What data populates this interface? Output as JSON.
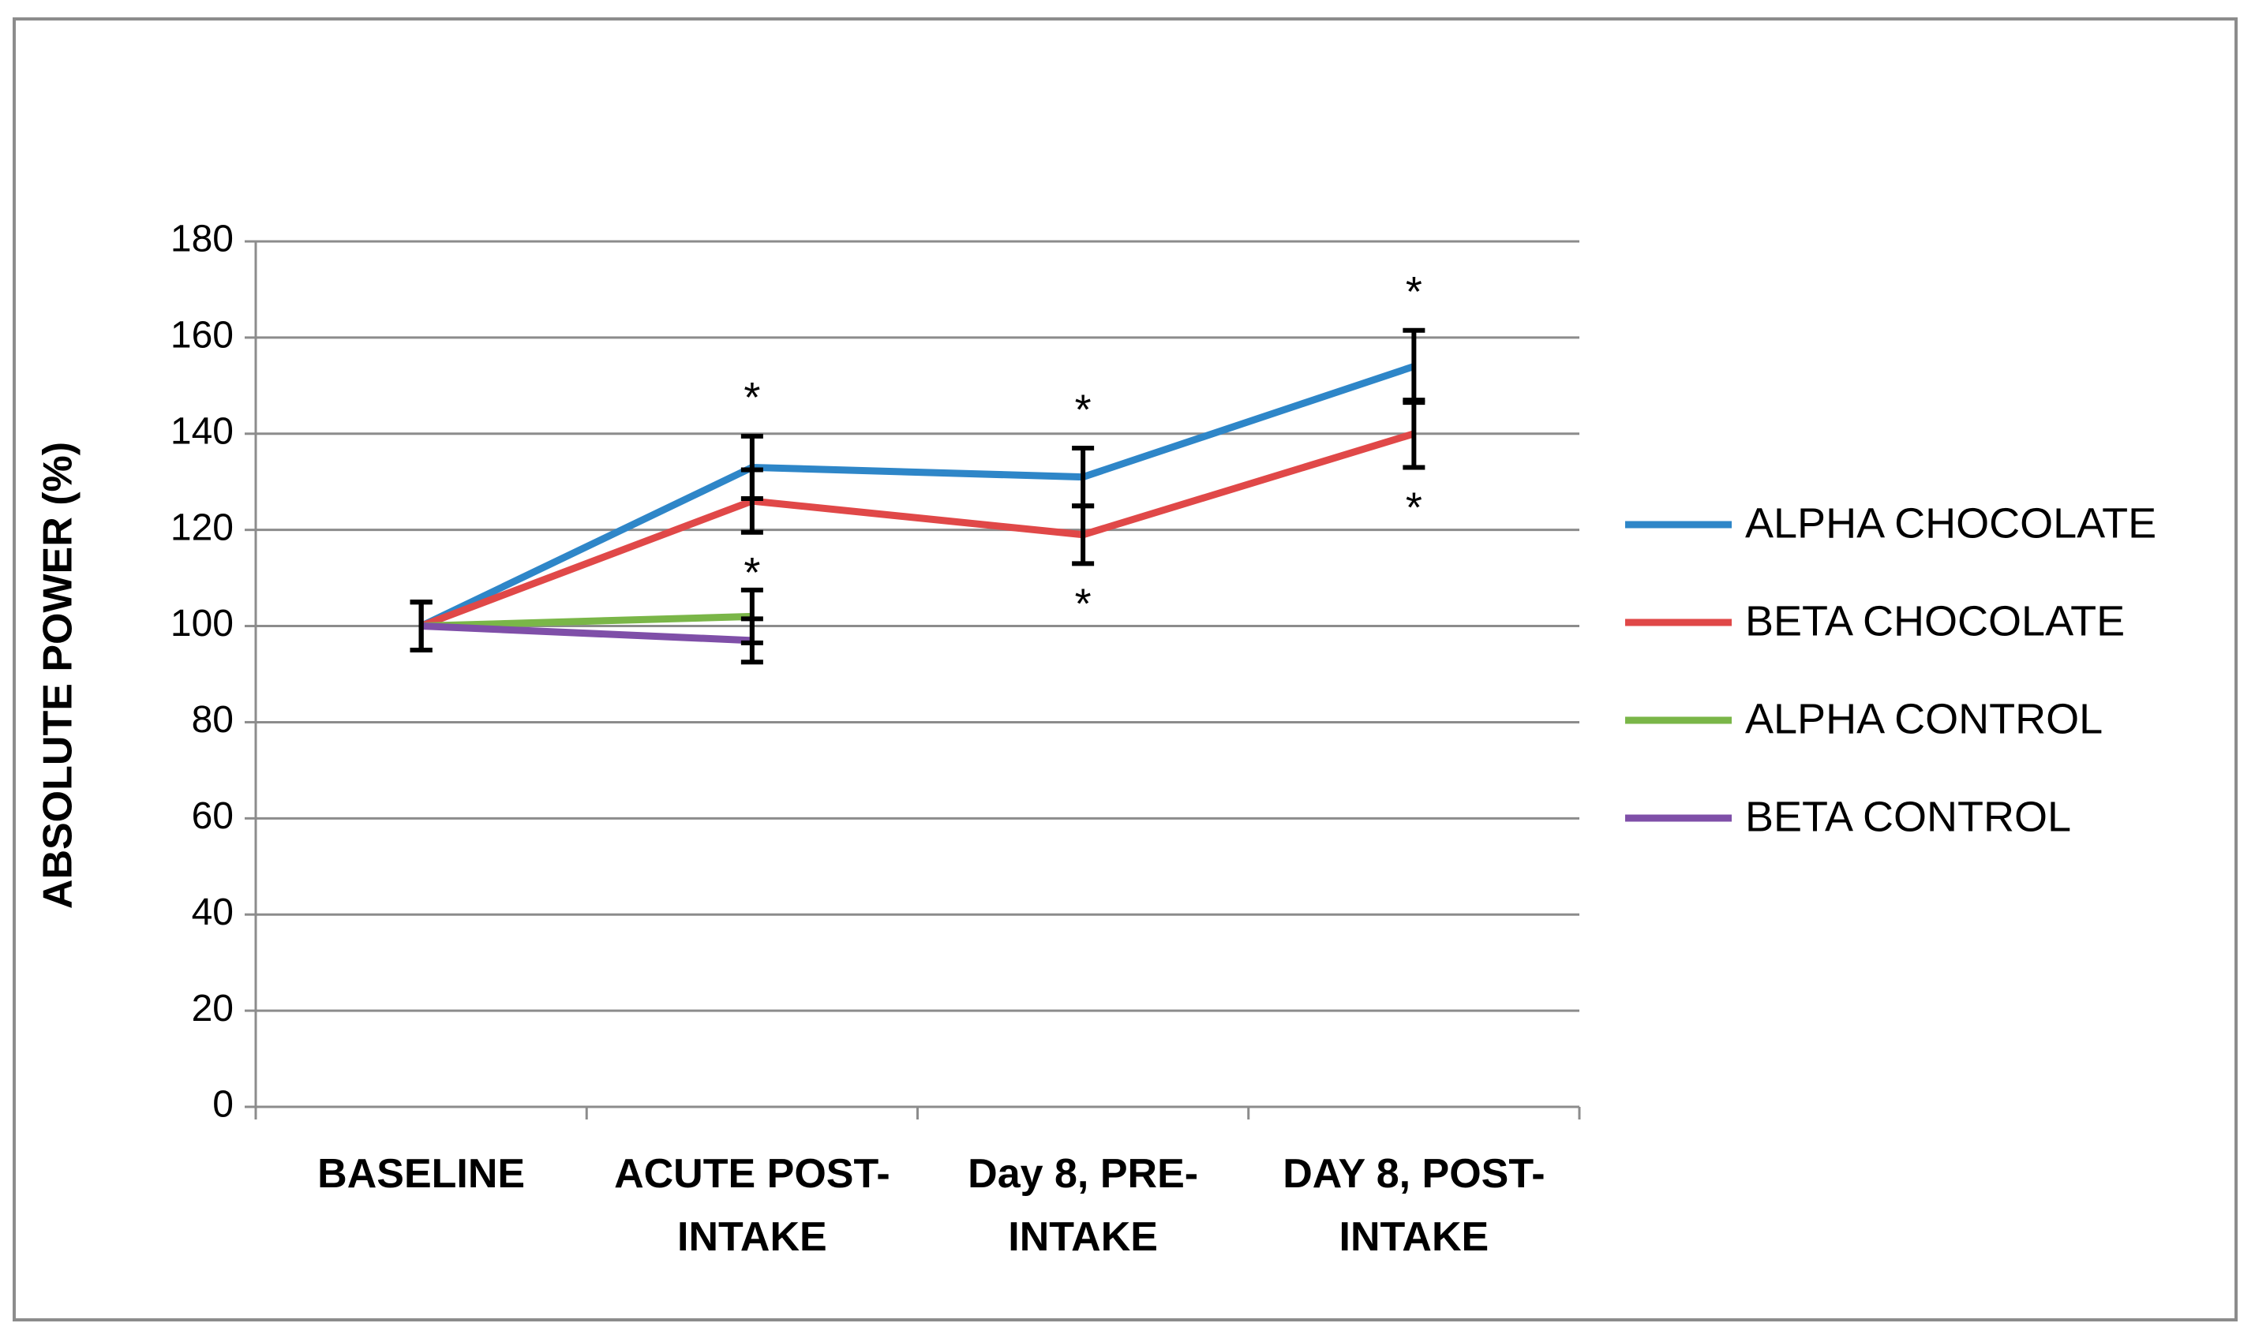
{
  "chart_data": {
    "type": "line",
    "y_label": "ABSOLUTE POWER (%)",
    "categories": [
      "BASELINE",
      "ACUTE POST-INTAKE",
      "Day 8, PRE-INTAKE",
      "DAY 8, POST-INTAKE"
    ],
    "ylim": [
      0,
      180
    ],
    "yticks": [
      0,
      20,
      40,
      60,
      80,
      100,
      120,
      140,
      160,
      180
    ],
    "grid": true,
    "legend": "right",
    "series": [
      {
        "name": "ALPHA CHOCOLATE",
        "color": "#2e86c8",
        "values": [
          100,
          133,
          131,
          154
        ],
        "errors": [
          5,
          6.5,
          6,
          7.5
        ],
        "significance": [
          null,
          "*",
          "*",
          "*"
        ]
      },
      {
        "name": "BETA CHOCOLATE",
        "color": "#e04848",
        "values": [
          100,
          126,
          119,
          140
        ],
        "errors": [
          5,
          6.5,
          6,
          7
        ],
        "significance": [
          null,
          "*",
          "*",
          "*"
        ]
      },
      {
        "name": "ALPHA CONTROL",
        "color": "#7ab648",
        "values": [
          100,
          102,
          null,
          null
        ],
        "errors": [
          5,
          5.5,
          null,
          null
        ]
      },
      {
        "name": "BETA CONTROL",
        "color": "#7f4fa8",
        "values": [
          100,
          97,
          null,
          null
        ],
        "errors": [
          5,
          4.5,
          null,
          null
        ]
      }
    ]
  }
}
